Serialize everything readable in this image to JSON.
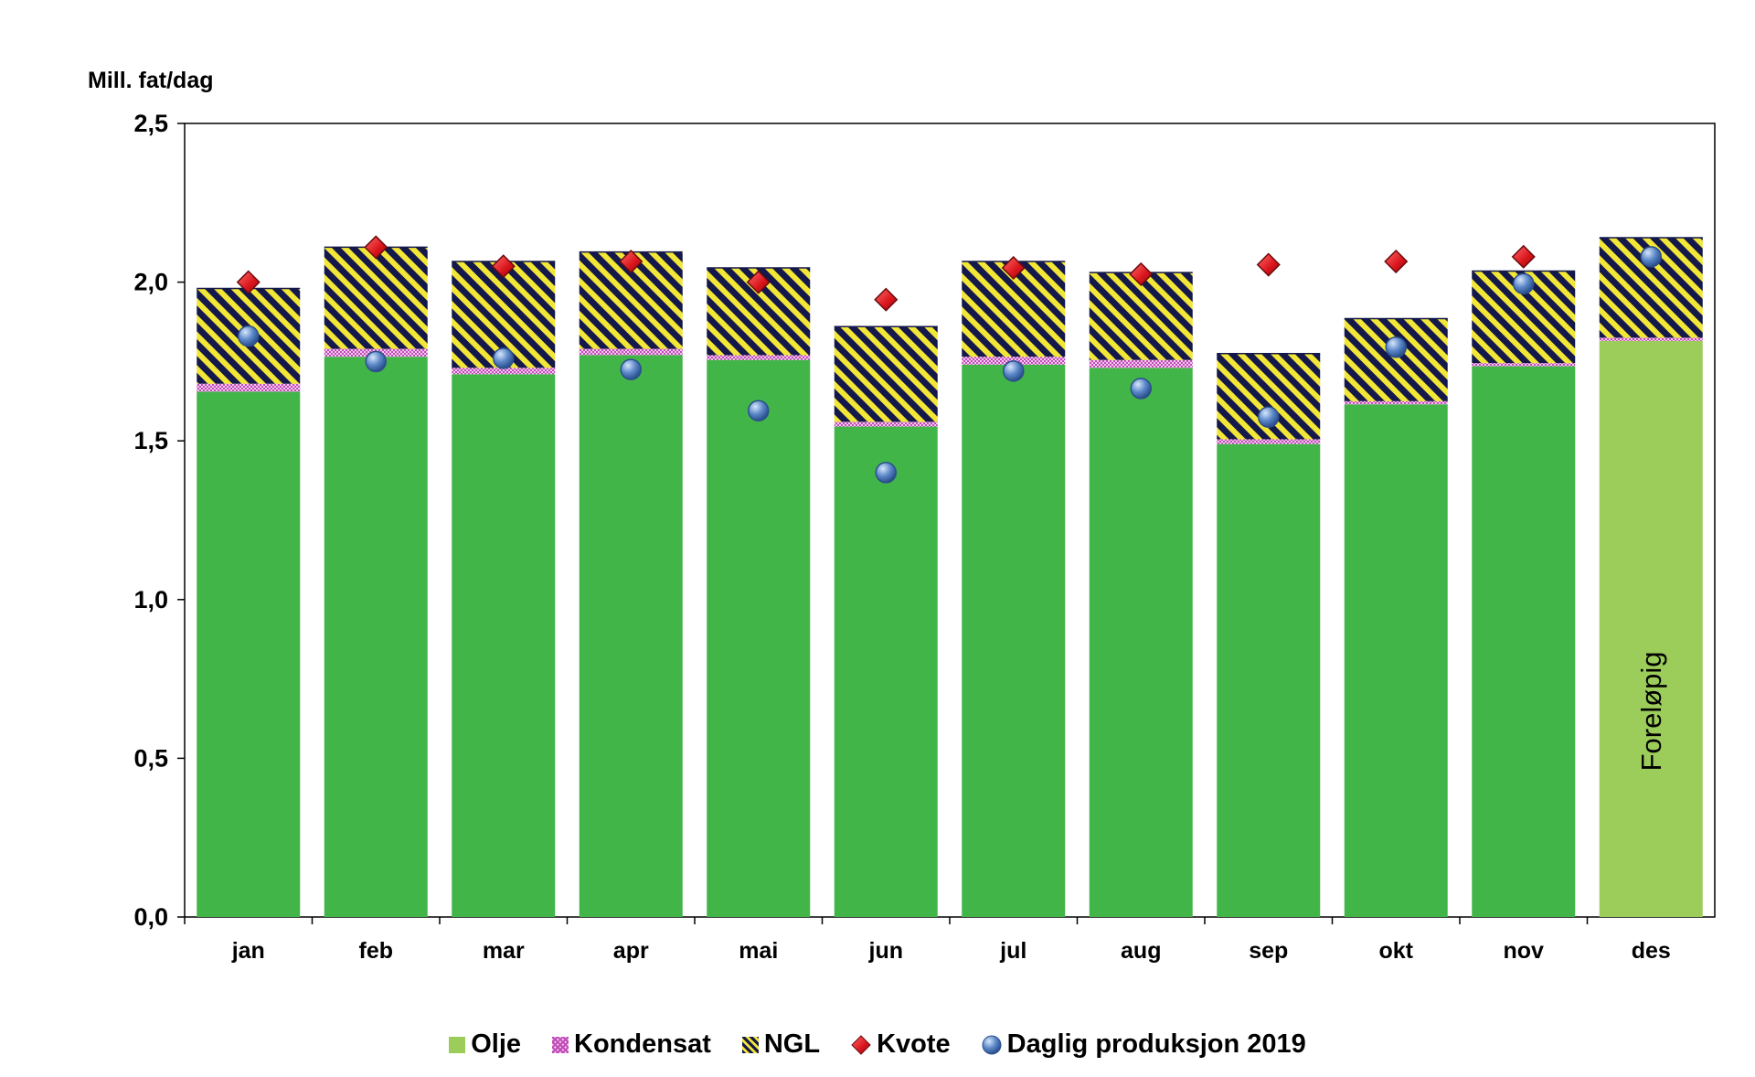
{
  "chart_data": {
    "type": "bar",
    "stacked": true,
    "ylabel": "Mill. fat/dag",
    "ylim": [
      0,
      2.5
    ],
    "yticks": [
      "0,0",
      "0,5",
      "1,0",
      "1,5",
      "2,0",
      "2,5"
    ],
    "ytick_values": [
      0,
      0.5,
      1.0,
      1.5,
      2.0,
      2.5
    ],
    "categories": [
      "jan",
      "feb",
      "mar",
      "apr",
      "mai",
      "jun",
      "jul",
      "aug",
      "sep",
      "okt",
      "nov",
      "des"
    ],
    "series": [
      {
        "name": "Olje",
        "kind": "bar",
        "color": "#42b549",
        "values": [
          1.655,
          1.765,
          1.71,
          1.77,
          1.755,
          1.545,
          1.74,
          1.73,
          1.49,
          1.615,
          1.735,
          1.815
        ]
      },
      {
        "name": "Kondensat",
        "kind": "bar",
        "color": "#c04cb8",
        "values": [
          0.025,
          0.025,
          0.02,
          0.02,
          0.015,
          0.015,
          0.025,
          0.025,
          0.015,
          0.01,
          0.01,
          0.01
        ]
      },
      {
        "name": "NGL",
        "kind": "bar",
        "color": "#14184a",
        "values": [
          0.3,
          0.32,
          0.335,
          0.305,
          0.275,
          0.3,
          0.3,
          0.275,
          0.27,
          0.26,
          0.29,
          0.315
        ]
      },
      {
        "name": "Kvote",
        "kind": "marker",
        "color": "#d9141b",
        "values": [
          2.0,
          2.11,
          2.05,
          2.065,
          2.0,
          1.945,
          2.045,
          2.025,
          2.055,
          2.065,
          2.08,
          null
        ]
      },
      {
        "name": "Daglig produksjon 2019",
        "kind": "marker",
        "color": "#5b87c8",
        "values": [
          1.83,
          1.75,
          1.76,
          1.725,
          1.595,
          1.4,
          1.72,
          1.665,
          1.575,
          1.795,
          1.995,
          2.08
        ]
      }
    ],
    "highlight_bar": {
      "category": "des",
      "color": "#9ccc5a"
    },
    "annotation": "Foreløpig",
    "grid": false,
    "legend_position": "bottom"
  }
}
